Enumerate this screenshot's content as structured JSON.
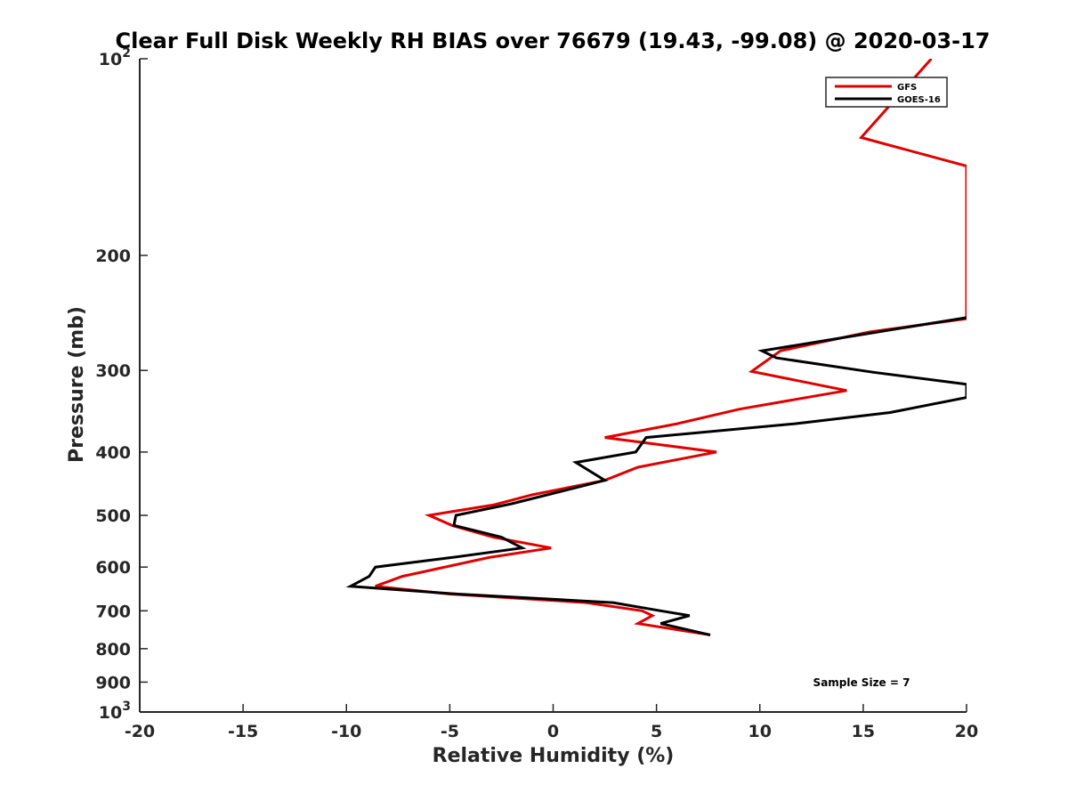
{
  "chart_data": {
    "type": "line",
    "title": "Clear Full Disk Weekly RH BIAS over 76679 (19.43, -99.08) @ 2020-03-17",
    "xlabel": "Relative Humidity (%)",
    "ylabel": "Pressure (mb)",
    "xlim": [
      -20,
      20
    ],
    "ylim": [
      100,
      1000
    ],
    "y_scale": "log",
    "y_reversed": true,
    "grid": false,
    "x_ticks": [
      "-20",
      "-15",
      "-10",
      "-5",
      "0",
      "5",
      "10",
      "15",
      "20"
    ],
    "y_ticks": [
      {
        "base": "10",
        "exp": "2",
        "label": ""
      },
      {
        "label": "200"
      },
      {
        "label": "300"
      },
      {
        "label": "400"
      },
      {
        "label": "500"
      },
      {
        "label": "600"
      },
      {
        "label": "700"
      },
      {
        "label": "800"
      },
      {
        "label": "900"
      },
      {
        "base": "10",
        "exp": "3",
        "label": ""
      }
    ],
    "legend": {
      "position": "top-right"
    },
    "series": [
      {
        "name": "GFS",
        "color": "#e00000",
        "points": [
          [
            18.3,
            100
          ],
          [
            14.9,
            132
          ],
          [
            20,
            146
          ],
          [
            20,
            250
          ],
          [
            15.3,
            262
          ],
          [
            11.0,
            280
          ],
          [
            9.6,
            301
          ],
          [
            14.2,
            322
          ],
          [
            9.0,
            344
          ],
          [
            6.0,
            362
          ],
          [
            2.5,
            380
          ],
          [
            7.9,
            400
          ],
          [
            4.1,
            422
          ],
          [
            2.5,
            442
          ],
          [
            -1.0,
            465
          ],
          [
            -2.9,
            482
          ],
          [
            -6.0,
            500
          ],
          [
            -4.9,
            518
          ],
          [
            -2.9,
            540
          ],
          [
            -0.1,
            561
          ],
          [
            -3.1,
            580
          ],
          [
            -7.3,
            620
          ],
          [
            -8.6,
            642
          ],
          [
            -5.0,
            660
          ],
          [
            1.6,
            680
          ],
          [
            4.3,
            700
          ],
          [
            4.8,
            712
          ],
          [
            4.1,
            732
          ],
          [
            7.6,
            762
          ]
        ]
      },
      {
        "name": "GOES-16",
        "color": "#000000",
        "points": [
          [
            20,
            249
          ],
          [
            10.1,
            280
          ],
          [
            10.8,
            287
          ],
          [
            15.5,
            302
          ],
          [
            20,
            315
          ],
          [
            20,
            330
          ],
          [
            16.3,
            348
          ],
          [
            11.7,
            362
          ],
          [
            4.5,
            380
          ],
          [
            4.0,
            400
          ],
          [
            1.1,
            415
          ],
          [
            2.5,
            442
          ],
          [
            -2.0,
            480
          ],
          [
            -4.7,
            500
          ],
          [
            -4.8,
            518
          ],
          [
            -2.5,
            540
          ],
          [
            -1.5,
            561
          ],
          [
            -4.9,
            580
          ],
          [
            -8.6,
            600
          ],
          [
            -8.9,
            620
          ],
          [
            -9.8,
            642
          ],
          [
            -4.6,
            660
          ],
          [
            2.9,
            680
          ],
          [
            5.2,
            700
          ],
          [
            6.6,
            712
          ],
          [
            5.2,
            732
          ],
          [
            7.6,
            762
          ]
        ]
      }
    ],
    "annotations": [
      {
        "text": "Sample Size = 7",
        "position": "bottom-right"
      }
    ]
  }
}
